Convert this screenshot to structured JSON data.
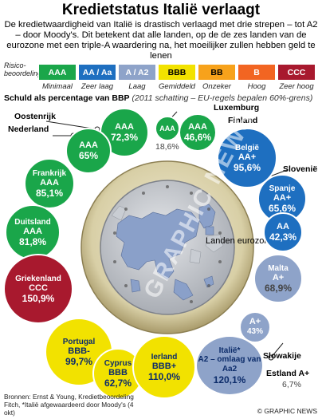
{
  "title": "Kredietstatus Italië verlaagt",
  "intro": "De kredietwaardigheid van Italië is drastisch verlaagd met drie strepen – tot A2 – door Moody's. Dit betekent dat alle landen, op de de zes landen van de eurozone met een triple-A waardering na, het moeilijker zullen hebben geld te lenen",
  "legend": {
    "label": "Risico-beoordeling",
    "ratings": [
      {
        "code": "AAA",
        "name": "Minimaal",
        "color": "#1aa64a"
      },
      {
        "code": "AA / Aa",
        "name": "Zeer laag",
        "color": "#1e6fc0"
      },
      {
        "code": "A / A2",
        "name": "Laag",
        "color": "#8ea3c9"
      },
      {
        "code": "BBB",
        "name": "Gemiddeld",
        "color": "#f2e200"
      },
      {
        "code": "BB",
        "name": "Onzeker",
        "color": "#f7a21b"
      },
      {
        "code": "B",
        "name": "Hoog",
        "color": "#f26522"
      },
      {
        "code": "CCC",
        "name": "Zeer hoog",
        "color": "#a8192e"
      }
    ]
  },
  "subtitle": {
    "bold": "Schuld als percentage van BBP",
    "italic": "(2011 schatting – EU-regels bepalen 60%-grens)"
  },
  "coin_label": "Landen eurozone",
  "countries": {
    "oostenrijk": {
      "label": "Oostenrijk",
      "rating": "AAA",
      "pct": "72,3%"
    },
    "nederland": {
      "label": "Nederland",
      "rating": "AAA",
      "pct": "65%"
    },
    "luxemburg": {
      "label": "Luxemburg",
      "rating": "AAA",
      "pct": "18,6%"
    },
    "finland": {
      "label": "Finland",
      "rating": "AAA",
      "pct": "46,6%"
    },
    "belgie": {
      "label": "België",
      "rating": "AA+",
      "pct": "95,6%"
    },
    "slovenie": {
      "label": "Slovenië",
      "rating": "AA",
      "pct": "42,3%"
    },
    "spanje": {
      "label": "Spanje",
      "rating": "AA+",
      "pct": "65,6%"
    },
    "frankrijk": {
      "label": "Frankrijk",
      "rating": "AAA",
      "pct": "85,1%"
    },
    "duitsland": {
      "label": "Duitsland",
      "rating": "AAA",
      "pct": "81,8%"
    },
    "malta": {
      "label": "Malta",
      "rating": "A+",
      "pct": "68,9%"
    },
    "griekenland": {
      "label": "Griekenland",
      "rating": "CCC",
      "pct": "150,9%"
    },
    "slowakije": {
      "label": "Slowakije",
      "rating": "A+",
      "pct": "43%"
    },
    "estland": {
      "label": "Estland A+",
      "pct": "6,7%"
    },
    "italie": {
      "label": "Italië*",
      "rating": "A2 – omlaag van Aa2",
      "pct": "120,1%"
    },
    "portugal": {
      "label": "Portugal",
      "rating": "BBB-",
      "pct": "99,7%"
    },
    "cyprus": {
      "label": "Cyprus",
      "rating": "BBB",
      "pct": "62,7%"
    },
    "ierland": {
      "label": "Ierland",
      "rating": "BBB+",
      "pct": "110,0%"
    }
  },
  "source": "Bronnen: Ernst & Young, Kredietbeoordeling Fitch, *Italië afgewaardeerd door Moody's (4 okt)",
  "credit": "© GRAPHIC NEWS",
  "watermark": "GRAPHIC NEWS"
}
